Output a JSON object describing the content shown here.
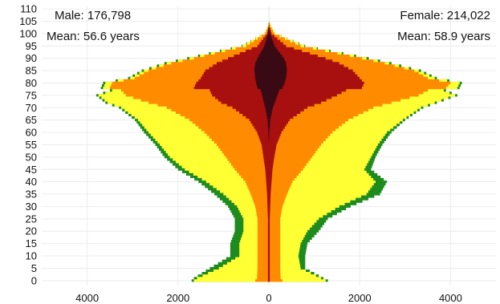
{
  "chart_data": {
    "type": "area",
    "title": "",
    "xlabel": "",
    "ylabel": "",
    "orientation": "horizontal-pyramid",
    "grid": true,
    "xlim": [
      -5000,
      5000
    ],
    "ylim": [
      -2,
      111
    ],
    "x_ticks": [
      -4000,
      -2000,
      0,
      2000,
      4000
    ],
    "x_tick_labels": [
      "4000",
      "2000",
      "0",
      "2000",
      "4000"
    ],
    "y_ticks": [
      0,
      5,
      10,
      15,
      20,
      25,
      30,
      35,
      40,
      45,
      50,
      55,
      60,
      65,
      70,
      75,
      80,
      85,
      90,
      95,
      100,
      105,
      110
    ],
    "y_tick_labels": [
      "0",
      "5",
      "10",
      "15",
      "20",
      "25",
      "30",
      "35",
      "40",
      "45",
      "50",
      "55",
      "60",
      "65",
      "70",
      "75",
      "80",
      "85",
      "90",
      "95",
      "100",
      "105",
      "110"
    ],
    "annotations": {
      "male_total": "Male: 176,798",
      "male_mean": "Mean: 56.6 years",
      "female_total": "Female: 214,022",
      "female_mean": "Mean: 58.9 years"
    },
    "age_points": [
      0,
      1,
      5,
      10,
      15,
      20,
      25,
      30,
      35,
      40,
      45,
      50,
      55,
      60,
      65,
      70,
      72,
      75,
      77,
      78,
      80,
      82,
      85,
      88,
      90,
      95,
      100,
      103,
      105
    ],
    "series": [
      {
        "sex": "male",
        "color": "#1e8b1e",
        "values": [
          1700,
          1650,
          1300,
          850,
          850,
          750,
          750,
          900,
          1200,
          1550,
          2000,
          2300,
          2500,
          2750,
          2950,
          3300,
          3600,
          3800,
          3500,
          3700,
          3650,
          3100,
          2800,
          2300,
          1800,
          600,
          100,
          20,
          0
        ]
      },
      {
        "sex": "male",
        "color": "#ffff33",
        "values": [
          1650,
          1580,
          1100,
          650,
          650,
          560,
          560,
          700,
          1000,
          1380,
          1850,
          2180,
          2400,
          2650,
          2880,
          3250,
          3550,
          3750,
          3450,
          3650,
          3600,
          3050,
          2750,
          2250,
          1750,
          580,
          100,
          20,
          0
        ]
      },
      {
        "sex": "male",
        "color": "#ff8c00",
        "values": [
          300,
          260,
          250,
          250,
          250,
          250,
          250,
          300,
          400,
          520,
          750,
          950,
          1150,
          1420,
          1750,
          2250,
          2650,
          3150,
          3250,
          3500,
          3450,
          2950,
          2650,
          2150,
          1650,
          500,
          80,
          10,
          0
        ]
      },
      {
        "sex": "male",
        "color": "#a81010",
        "values": [
          20,
          20,
          20,
          20,
          20,
          20,
          20,
          30,
          40,
          60,
          80,
          120,
          160,
          260,
          430,
          800,
          1050,
          1250,
          1300,
          1650,
          1600,
          1500,
          1400,
          1150,
          900,
          250,
          40,
          5,
          0
        ]
      },
      {
        "sex": "male",
        "color": "#3a0a14",
        "values": [
          0,
          0,
          0,
          0,
          0,
          0,
          0,
          0,
          0,
          0,
          0,
          0,
          0,
          10,
          30,
          80,
          110,
          150,
          180,
          250,
          280,
          300,
          320,
          300,
          250,
          100,
          20,
          0,
          0
        ]
      },
      {
        "sex": "female",
        "color": "#1e8b1e",
        "values": [
          1300,
          1200,
          800,
          800,
          850,
          1100,
          1300,
          1800,
          2450,
          2600,
          2250,
          2350,
          2500,
          2700,
          3000,
          3400,
          3700,
          4150,
          3900,
          4200,
          4250,
          3700,
          3350,
          2700,
          2200,
          800,
          150,
          40,
          5
        ]
      },
      {
        "sex": "female",
        "color": "#ffff33",
        "values": [
          1250,
          1150,
          700,
          650,
          700,
          850,
          1100,
          1550,
          2150,
          2350,
          2100,
          2250,
          2400,
          2600,
          2950,
          3350,
          3650,
          4100,
          3850,
          4150,
          4200,
          3650,
          3300,
          2650,
          2150,
          780,
          150,
          40,
          5
        ]
      },
      {
        "sex": "female",
        "color": "#ff8c00",
        "values": [
          300,
          260,
          250,
          250,
          250,
          250,
          250,
          300,
          400,
          520,
          750,
          950,
          1150,
          1400,
          1750,
          2300,
          2700,
          3300,
          3500,
          3900,
          4000,
          3500,
          3200,
          2550,
          2050,
          700,
          120,
          30,
          0
        ]
      },
      {
        "sex": "female",
        "color": "#a81010",
        "values": [
          20,
          20,
          20,
          20,
          20,
          20,
          20,
          30,
          40,
          60,
          80,
          120,
          170,
          280,
          460,
          850,
          1150,
          1500,
          1700,
          2050,
          2100,
          2000,
          1850,
          1550,
          1250,
          380,
          60,
          10,
          0
        ]
      },
      {
        "sex": "female",
        "color": "#3a0a14",
        "values": [
          0,
          0,
          0,
          0,
          0,
          0,
          0,
          0,
          0,
          0,
          0,
          0,
          0,
          10,
          30,
          90,
          130,
          190,
          230,
          300,
          350,
          380,
          400,
          380,
          330,
          130,
          25,
          0,
          0
        ]
      }
    ]
  }
}
